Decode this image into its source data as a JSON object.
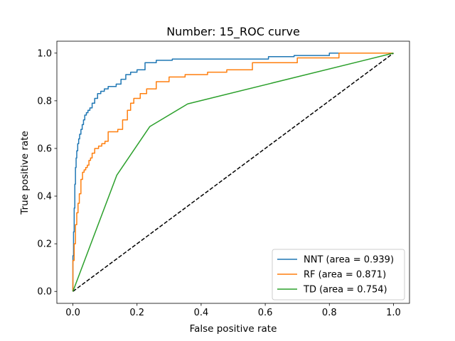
{
  "chart_data": {
    "type": "line",
    "title": "Number: 15_ROC curve",
    "xlabel": "False positive rate",
    "ylabel": "True positive rate",
    "xlim": [
      -0.05,
      1.05
    ],
    "ylim": [
      -0.05,
      1.05
    ],
    "xticks": [
      0.0,
      0.2,
      0.4,
      0.6,
      0.8,
      1.0
    ],
    "yticks": [
      0.0,
      0.2,
      0.4,
      0.6,
      0.8,
      1.0
    ],
    "xtick_labels": [
      "0.0",
      "0.2",
      "0.4",
      "0.6",
      "0.8",
      "1.0"
    ],
    "ytick_labels": [
      "0.0",
      "0.2",
      "0.4",
      "0.6",
      "0.8",
      "1.0"
    ],
    "grid": false,
    "legend_position": "lower-right",
    "series": [
      {
        "name": "NNT (area = 0.939)",
        "color": "#1f77b4",
        "style": "step",
        "x": [
          0.0,
          0.0,
          0.002,
          0.002,
          0.004,
          0.004,
          0.006,
          0.006,
          0.008,
          0.008,
          0.01,
          0.01,
          0.012,
          0.012,
          0.015,
          0.015,
          0.018,
          0.018,
          0.021,
          0.021,
          0.025,
          0.025,
          0.029,
          0.029,
          0.033,
          0.033,
          0.037,
          0.037,
          0.042,
          0.042,
          0.047,
          0.047,
          0.053,
          0.053,
          0.06,
          0.06,
          0.068,
          0.068,
          0.077,
          0.077,
          0.087,
          0.087,
          0.098,
          0.098,
          0.11,
          0.11,
          0.135,
          0.135,
          0.15,
          0.15,
          0.165,
          0.165,
          0.18,
          0.18,
          0.2,
          0.2,
          0.225,
          0.225,
          0.26,
          0.26,
          0.31,
          0.31,
          0.61,
          0.61,
          0.69,
          0.69,
          0.8,
          0.8,
          0.83,
          0.83,
          1.0
        ],
        "y": [
          0.0,
          0.15,
          0.15,
          0.25,
          0.25,
          0.35,
          0.35,
          0.45,
          0.45,
          0.52,
          0.52,
          0.56,
          0.56,
          0.59,
          0.59,
          0.62,
          0.62,
          0.64,
          0.64,
          0.66,
          0.66,
          0.68,
          0.68,
          0.7,
          0.7,
          0.72,
          0.72,
          0.74,
          0.74,
          0.75,
          0.75,
          0.76,
          0.76,
          0.77,
          0.77,
          0.79,
          0.79,
          0.81,
          0.81,
          0.83,
          0.83,
          0.84,
          0.84,
          0.85,
          0.85,
          0.86,
          0.86,
          0.87,
          0.87,
          0.89,
          0.89,
          0.91,
          0.91,
          0.92,
          0.92,
          0.93,
          0.93,
          0.96,
          0.96,
          0.97,
          0.97,
          0.975,
          0.975,
          0.985,
          0.985,
          0.99,
          0.99,
          1.0,
          1.0,
          1.0,
          1.0
        ]
      },
      {
        "name": "RF (area = 0.871)",
        "color": "#ff7f0e",
        "style": "step",
        "x": [
          0.0,
          0.0,
          0.004,
          0.004,
          0.008,
          0.008,
          0.012,
          0.012,
          0.016,
          0.016,
          0.02,
          0.02,
          0.025,
          0.025,
          0.03,
          0.03,
          0.035,
          0.035,
          0.04,
          0.04,
          0.045,
          0.045,
          0.05,
          0.05,
          0.055,
          0.055,
          0.06,
          0.06,
          0.068,
          0.068,
          0.08,
          0.08,
          0.09,
          0.09,
          0.1,
          0.1,
          0.11,
          0.11,
          0.14,
          0.14,
          0.155,
          0.155,
          0.17,
          0.17,
          0.18,
          0.18,
          0.19,
          0.19,
          0.21,
          0.21,
          0.23,
          0.23,
          0.26,
          0.26,
          0.3,
          0.3,
          0.35,
          0.35,
          0.42,
          0.42,
          0.48,
          0.48,
          0.56,
          0.56,
          0.7,
          0.7,
          0.83,
          0.83,
          1.0
        ],
        "y": [
          0.0,
          0.13,
          0.13,
          0.2,
          0.2,
          0.28,
          0.28,
          0.33,
          0.33,
          0.37,
          0.37,
          0.41,
          0.41,
          0.47,
          0.47,
          0.5,
          0.5,
          0.51,
          0.51,
          0.52,
          0.52,
          0.53,
          0.53,
          0.55,
          0.55,
          0.56,
          0.56,
          0.58,
          0.58,
          0.6,
          0.6,
          0.61,
          0.61,
          0.62,
          0.62,
          0.63,
          0.63,
          0.67,
          0.67,
          0.68,
          0.68,
          0.72,
          0.72,
          0.76,
          0.76,
          0.79,
          0.79,
          0.81,
          0.81,
          0.83,
          0.83,
          0.85,
          0.85,
          0.88,
          0.88,
          0.9,
          0.9,
          0.91,
          0.91,
          0.92,
          0.92,
          0.93,
          0.93,
          0.96,
          0.96,
          0.98,
          0.98,
          1.0,
          1.0
        ]
      },
      {
        "name": "TD (area = 0.754)",
        "color": "#2ca02c",
        "style": "line",
        "x": [
          0.0,
          0.137,
          0.24,
          0.358,
          1.0
        ],
        "y": [
          0.0,
          0.488,
          0.692,
          0.787,
          1.0
        ]
      },
      {
        "name": "",
        "color": "#000000",
        "style": "dashed",
        "x": [
          0.0,
          1.0
        ],
        "y": [
          0.0,
          1.0
        ]
      }
    ]
  }
}
